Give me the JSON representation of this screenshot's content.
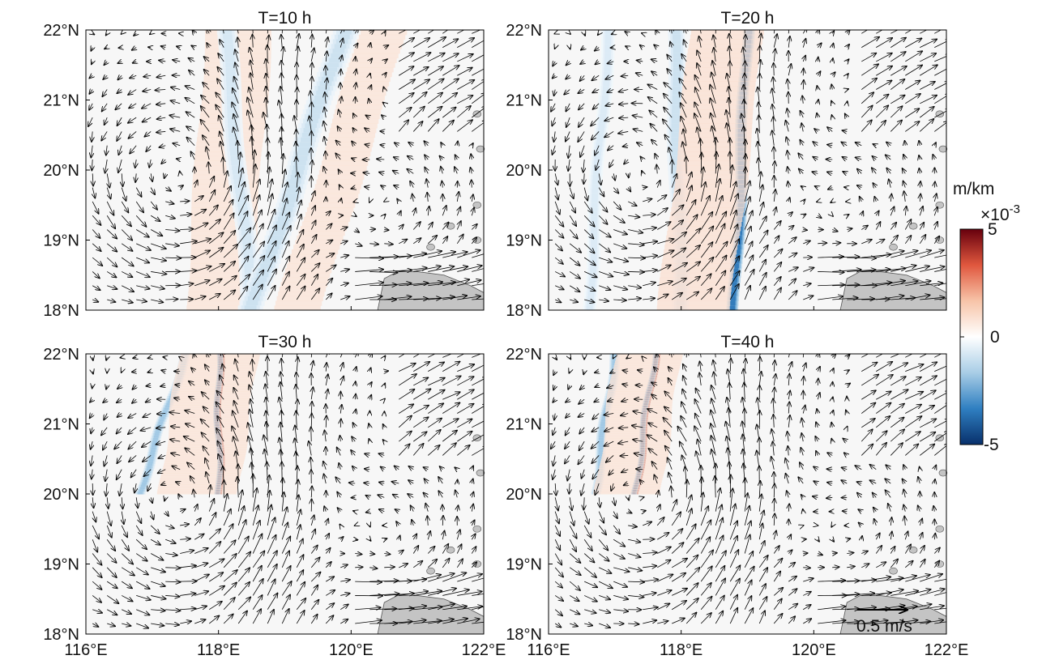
{
  "figure": {
    "colorbar": {
      "unit": "m/km",
      "exponent_label": "×10",
      "exponent_value": "-3",
      "ticks": [
        "5",
        "0",
        "-5"
      ],
      "range": [
        -5,
        5
      ],
      "colors": [
        "#08306b",
        "#2f7fc1",
        "#a8cde6",
        "#ffffff",
        "#f7c4a8",
        "#e0573e",
        "#67000d"
      ]
    },
    "reference_vector": {
      "label": "0.5 m/s",
      "value": 0.5
    },
    "land_color": "#c4c4c4"
  },
  "chart_data": [
    {
      "type": "heatmap",
      "title": "T=10 h",
      "xlabel": "",
      "ylabel": "",
      "xlim": [
        116,
        122
      ],
      "ylim": [
        18,
        22
      ],
      "xticks": [
        "116°E",
        "118°E",
        "120°E",
        "122°E"
      ],
      "yticks": [
        "18°N",
        "19°N",
        "20°N",
        "21°N",
        "22°N"
      ],
      "grid": false,
      "features": [
        {
          "kind": "positive_band",
          "lon_at_22N": 118.3,
          "lon_at_18N": 118.0,
          "half_width_deg": 0.5,
          "peak": 0.8
        },
        {
          "kind": "negative_band",
          "lon_at_22N": 118.1,
          "lon_at_18N": 118.5,
          "half_width_deg": 0.12,
          "peak": -0.8
        },
        {
          "kind": "negative_band",
          "lon_at_22N": 119.9,
          "lon_at_18N": 118.5,
          "half_width_deg": 0.15,
          "peak": -1.0
        },
        {
          "kind": "positive_band",
          "lon_at_22N": 120.5,
          "lon_at_18N": 119.2,
          "half_width_deg": 0.35,
          "peak": 0.8
        }
      ]
    },
    {
      "type": "heatmap",
      "title": "T=20 h",
      "xlabel": "",
      "ylabel": "",
      "xlim": [
        116,
        122
      ],
      "ylim": [
        18,
        22
      ],
      "xticks": [
        "116°E",
        "118°E",
        "120°E",
        "122°E"
      ],
      "yticks": [
        "18°N",
        "19°N",
        "20°N",
        "21°N",
        "22°N"
      ],
      "grid": false,
      "features": [
        {
          "kind": "negative_band",
          "lon_at_22N": 116.9,
          "lon_at_18N": 116.6,
          "half_width_deg": 0.08,
          "peak": -0.7
        },
        {
          "kind": "negative_band",
          "lon_at_22N": 117.9,
          "lon_at_18N": 118.0,
          "half_width_deg": 0.1,
          "peak": -1.0
        },
        {
          "kind": "negative_band",
          "lon_at_22N": 119.0,
          "lon_at_18N": 118.8,
          "half_width_deg": 0.07,
          "peak": -3.5
        },
        {
          "kind": "positive_band",
          "lon_at_22N": 118.7,
          "lon_at_18N": 118.2,
          "half_width_deg": 0.55,
          "peak": 0.9
        }
      ]
    },
    {
      "type": "heatmap",
      "title": "T=30 h",
      "xlabel": "",
      "ylabel": "",
      "xlim": [
        116,
        122
      ],
      "ylim": [
        18,
        22
      ],
      "xticks": [
        "116°E",
        "118°E",
        "120°E",
        "122°E"
      ],
      "yticks": [
        "18°N",
        "19°N",
        "20°N",
        "21°N",
        "22°N"
      ],
      "grid": false,
      "features": [
        {
          "kind": "negative_band",
          "lon_at_22N": 117.5,
          "lon_at_20N": 116.8,
          "half_width_deg": 0.06,
          "peak": -1.8
        },
        {
          "kind": "negative_band",
          "lon_at_22N": 118.0,
          "lon_at_20N": 118.0,
          "half_width_deg": 0.04,
          "peak": -5.0
        },
        {
          "kind": "positive_band",
          "lon_at_22N": 118.0,
          "lon_at_20N": 117.7,
          "half_width_deg": 0.6,
          "peak": 0.8
        }
      ]
    },
    {
      "type": "heatmap",
      "title": "T=40 h",
      "xlabel": "",
      "ylabel": "",
      "xlim": [
        116,
        122
      ],
      "ylim": [
        18,
        22
      ],
      "xticks": [
        "116°E",
        "118°E",
        "120°E",
        "122°E"
      ],
      "yticks": [
        "18°N",
        "19°N",
        "20°N",
        "21°N",
        "22°N"
      ],
      "grid": false,
      "features": [
        {
          "kind": "negative_band",
          "lon_at_22N": 117.0,
          "lon_at_20N": 116.7,
          "half_width_deg": 0.06,
          "peak": -1.8
        },
        {
          "kind": "negative_band",
          "lon_at_22N": 117.6,
          "lon_at_20N": 117.3,
          "half_width_deg": 0.04,
          "peak": -5.0
        },
        {
          "kind": "positive_band",
          "lon_at_22N": 117.5,
          "lon_at_20N": 117.2,
          "half_width_deg": 0.5,
          "peak": 0.8
        }
      ]
    }
  ]
}
